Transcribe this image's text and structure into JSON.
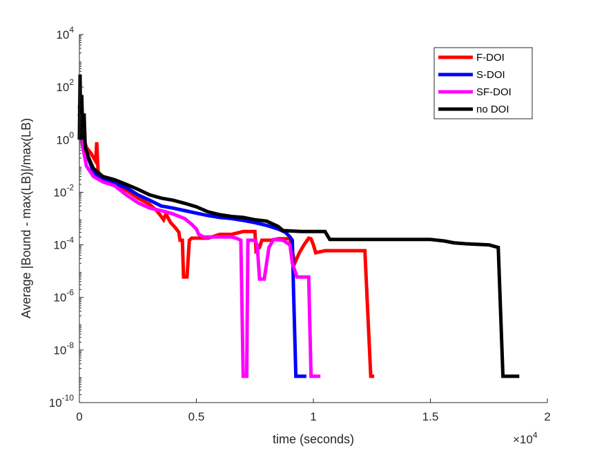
{
  "chart_data": {
    "type": "line",
    "title": "",
    "xlabel": "time (seconds)",
    "ylabel": "Average |Bound - max(LB)|/max(LB)",
    "x_multiplier_label": {
      "base": "×10",
      "exp": "4"
    },
    "xlim": [
      0,
      20000
    ],
    "ylim_log10": [
      -10,
      4
    ],
    "x_ticks": [
      {
        "value": 0,
        "label": "0"
      },
      {
        "value": 5000,
        "label": "0.5"
      },
      {
        "value": 10000,
        "label": "1"
      },
      {
        "value": 15000,
        "label": "1.5"
      },
      {
        "value": 20000,
        "label": "2"
      }
    ],
    "y_ticks": [
      {
        "exp": -10,
        "base": "10",
        "sup": "-10"
      },
      {
        "exp": -8,
        "base": "10",
        "sup": "-8"
      },
      {
        "exp": -6,
        "base": "10",
        "sup": "-6"
      },
      {
        "exp": -4,
        "base": "10",
        "sup": "-4"
      },
      {
        "exp": -2,
        "base": "10",
        "sup": "-2"
      },
      {
        "exp": 0,
        "base": "10",
        "sup": "0"
      },
      {
        "exp": 2,
        "base": "10",
        "sup": "2"
      },
      {
        "exp": 4,
        "base": "10",
        "sup": "4"
      }
    ],
    "legend": {
      "position": "top-right"
    },
    "series": [
      {
        "name": "F-DOI",
        "color": "#ff0000",
        "points": [
          [
            0,
            1.2
          ],
          [
            60,
            5
          ],
          [
            150,
            1.5
          ],
          [
            300,
            0.5
          ],
          [
            500,
            0.3
          ],
          [
            700,
            0.15
          ],
          [
            740,
            0.8
          ],
          [
            800,
            0.06
          ],
          [
            1000,
            0.035
          ],
          [
            1500,
            0.02
          ],
          [
            2000,
            0.012
          ],
          [
            2500,
            0.006
          ],
          [
            3000,
            0.0035
          ],
          [
            3300,
            0.002
          ],
          [
            3500,
            0.0012
          ],
          [
            3600,
            0.0009
          ],
          [
            3700,
            0.0015
          ],
          [
            3900,
            0.0007
          ],
          [
            4100,
            0.00045
          ],
          [
            4250,
            0.0003
          ],
          [
            4300,
            0.00015
          ],
          [
            4400,
            0.00015
          ],
          [
            4450,
            6e-06
          ],
          [
            4600,
            6e-06
          ],
          [
            4700,
            0.00015
          ],
          [
            4800,
            0.00018
          ],
          [
            5500,
            0.00018
          ],
          [
            6000,
            0.00025
          ],
          [
            6500,
            0.00025
          ],
          [
            7000,
            0.00032
          ],
          [
            7500,
            0.00032
          ],
          [
            7550,
            6e-05
          ],
          [
            7700,
            8e-05
          ],
          [
            7800,
            0.00015
          ],
          [
            8000,
            0.00015
          ],
          [
            8200,
            0.00015
          ],
          [
            8500,
            0.00017
          ],
          [
            9000,
            0.00017
          ],
          [
            9200,
            2e-05
          ],
          [
            9400,
            5e-05
          ],
          [
            9600,
            0.0001
          ],
          [
            9800,
            0.00018
          ],
          [
            9900,
            0.00017
          ],
          [
            10000,
            0.0001
          ],
          [
            10100,
            5e-05
          ],
          [
            10500,
            6e-05
          ],
          [
            12200,
            6e-05
          ],
          [
            12450,
            1e-09
          ],
          [
            12600,
            1e-09
          ]
        ]
      },
      {
        "name": "S-DOI",
        "color": "#0000ff",
        "points": [
          [
            0,
            8
          ],
          [
            60,
            20
          ],
          [
            150,
            1.5
          ],
          [
            300,
            0.3
          ],
          [
            600,
            0.06
          ],
          [
            1000,
            0.03
          ],
          [
            1500,
            0.022
          ],
          [
            2000,
            0.015
          ],
          [
            2500,
            0.008
          ],
          [
            3000,
            0.005
          ],
          [
            3500,
            0.003
          ],
          [
            4000,
            0.0025
          ],
          [
            4500,
            0.002
          ],
          [
            5000,
            0.0016
          ],
          [
            5500,
            0.0013
          ],
          [
            6000,
            0.0011
          ],
          [
            6500,
            0.001
          ],
          [
            7000,
            0.00085
          ],
          [
            7500,
            0.0007
          ],
          [
            8000,
            0.00055
          ],
          [
            8500,
            0.0004
          ],
          [
            8800,
            0.0003
          ],
          [
            9000,
            0.0002
          ],
          [
            9100,
            0.00015
          ],
          [
            9150,
            2e-06
          ],
          [
            9250,
            1e-09
          ],
          [
            9700,
            1e-09
          ]
        ]
      },
      {
        "name": "SF-DOI",
        "color": "#ff00ff",
        "points": [
          [
            0,
            20
          ],
          [
            60,
            2
          ],
          [
            150,
            0.5
          ],
          [
            300,
            0.1
          ],
          [
            600,
            0.04
          ],
          [
            1000,
            0.025
          ],
          [
            1500,
            0.018
          ],
          [
            2000,
            0.008
          ],
          [
            2500,
            0.004
          ],
          [
            3000,
            0.0025
          ],
          [
            3500,
            0.002
          ],
          [
            4000,
            0.0015
          ],
          [
            4500,
            0.001
          ],
          [
            4800,
            0.0006
          ],
          [
            5000,
            0.0004
          ],
          [
            5100,
            0.00025
          ],
          [
            5300,
            0.0002
          ],
          [
            5800,
            0.0002
          ],
          [
            6500,
            0.0002
          ],
          [
            6700,
            0.00018
          ],
          [
            6900,
            0.00015
          ],
          [
            7000,
            1e-09
          ],
          [
            7150,
            1e-09
          ],
          [
            7200,
            0.00015
          ],
          [
            7500,
            0.00015
          ],
          [
            7600,
            0.0001
          ],
          [
            7700,
            5e-06
          ],
          [
            7900,
            5e-06
          ],
          [
            8100,
            8e-05
          ],
          [
            8300,
            0.00016
          ],
          [
            8700,
            0.00015
          ],
          [
            9000,
            0.0001
          ],
          [
            9100,
            2e-05
          ],
          [
            9300,
            6e-06
          ],
          [
            9500,
            6e-06
          ],
          [
            9800,
            6e-06
          ],
          [
            9900,
            1e-09
          ],
          [
            10300,
            1e-09
          ]
        ]
      },
      {
        "name": "no DOI",
        "color": "#000000",
        "points": [
          [
            0,
            1
          ],
          [
            30,
            300
          ],
          [
            60,
            1
          ],
          [
            100,
            50
          ],
          [
            150,
            1
          ],
          [
            200,
            10
          ],
          [
            250,
            0.5
          ],
          [
            400,
            0.2
          ],
          [
            600,
            0.08
          ],
          [
            1000,
            0.04
          ],
          [
            1500,
            0.03
          ],
          [
            2000,
            0.02
          ],
          [
            2500,
            0.013
          ],
          [
            3000,
            0.008
          ],
          [
            3500,
            0.006
          ],
          [
            4000,
            0.005
          ],
          [
            4500,
            0.0038
          ],
          [
            5000,
            0.0028
          ],
          [
            5500,
            0.0018
          ],
          [
            6000,
            0.0014
          ],
          [
            6500,
            0.0012
          ],
          [
            7000,
            0.0011
          ],
          [
            7500,
            0.0009
          ],
          [
            8000,
            0.0008
          ],
          [
            8500,
            0.0005
          ],
          [
            8700,
            0.00035
          ],
          [
            9500,
            0.00032
          ],
          [
            10500,
            0.00032
          ],
          [
            10700,
            0.00016
          ],
          [
            11500,
            0.00016
          ],
          [
            15000,
            0.00016
          ],
          [
            15600,
            0.00014
          ],
          [
            16000,
            0.00012
          ],
          [
            16500,
            0.00011
          ],
          [
            17500,
            0.0001
          ],
          [
            17900,
            8e-05
          ],
          [
            18100,
            1e-09
          ],
          [
            18800,
            1e-09
          ]
        ]
      }
    ]
  }
}
